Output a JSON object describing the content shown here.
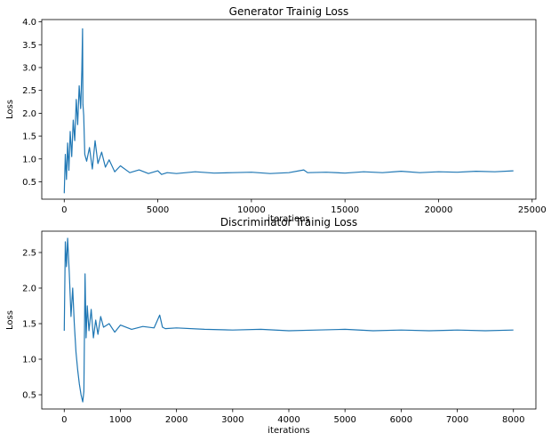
{
  "chart_data": [
    {
      "type": "line",
      "title": "Generator Trainig Loss",
      "xlabel": "iterations",
      "ylabel": "Loss",
      "xlim": [
        -1200,
        25200
      ],
      "ylim": [
        0.12,
        4.05
      ],
      "xticks": [
        0,
        5000,
        10000,
        15000,
        20000,
        25000
      ],
      "yticks": [
        0.5,
        1.0,
        1.5,
        2.0,
        2.5,
        3.0,
        3.5,
        4.0
      ],
      "ytick_labels": [
        "0.5",
        "1.0",
        "1.5",
        "2.0",
        "2.5",
        "3.0",
        "3.5",
        "4.0"
      ],
      "grid": false,
      "color": "#1f77b4",
      "series": [
        {
          "x": [
            0,
            60,
            120,
            180,
            250,
            320,
            400,
            480,
            560,
            640,
            720,
            800,
            880,
            940,
            980,
            1000,
            1040,
            1100,
            1200,
            1350,
            1500,
            1650,
            1800,
            2000,
            2200,
            2400,
            2700,
            3000,
            3500,
            4000,
            4500,
            5000,
            5200,
            5500,
            6000,
            7000,
            8000,
            9000,
            10000,
            11000,
            12000,
            12800,
            13000,
            14000,
            15000,
            16000,
            17000,
            18000,
            19000,
            20000,
            21000,
            22000,
            23000,
            24000
          ],
          "y": [
            0.25,
            1.1,
            0.55,
            1.35,
            0.75,
            1.6,
            1.05,
            1.85,
            1.4,
            2.3,
            1.75,
            2.6,
            2.1,
            2.95,
            3.85,
            2.2,
            1.95,
            1.1,
            0.95,
            1.25,
            0.78,
            1.4,
            0.9,
            1.15,
            0.82,
            0.98,
            0.72,
            0.85,
            0.7,
            0.76,
            0.68,
            0.74,
            0.66,
            0.7,
            0.68,
            0.72,
            0.69,
            0.7,
            0.71,
            0.68,
            0.7,
            0.76,
            0.7,
            0.71,
            0.69,
            0.72,
            0.7,
            0.73,
            0.7,
            0.72,
            0.71,
            0.73,
            0.72,
            0.74
          ]
        }
      ]
    },
    {
      "type": "line",
      "title": "Discriminator Trainig Loss",
      "xlabel": "iterations",
      "ylabel": "Loss",
      "xlim": [
        -400,
        8400
      ],
      "ylim": [
        0.3,
        2.8
      ],
      "xticks": [
        0,
        1000,
        2000,
        3000,
        4000,
        5000,
        6000,
        7000,
        8000
      ],
      "yticks": [
        0.5,
        1.0,
        1.5,
        2.0,
        2.5
      ],
      "ytick_labels": [
        "0.5",
        "1.0",
        "1.5",
        "2.0",
        "2.5"
      ],
      "grid": false,
      "color": "#1f77b4",
      "series": [
        {
          "x": [
            0,
            20,
            40,
            60,
            90,
            120,
            150,
            180,
            210,
            240,
            270,
            300,
            330,
            350,
            370,
            390,
            410,
            440,
            480,
            520,
            560,
            600,
            650,
            700,
            800,
            900,
            1000,
            1200,
            1400,
            1600,
            1700,
            1750,
            1800,
            2000,
            2500,
            3000,
            3500,
            4000,
            4500,
            5000,
            5500,
            6000,
            6500,
            7000,
            7500,
            8000
          ],
          "y": [
            1.4,
            2.65,
            2.3,
            2.7,
            2.2,
            1.6,
            2.0,
            1.5,
            1.1,
            0.85,
            0.65,
            0.5,
            0.4,
            0.55,
            2.2,
            1.3,
            1.75,
            1.4,
            1.7,
            1.3,
            1.55,
            1.35,
            1.6,
            1.45,
            1.5,
            1.38,
            1.48,
            1.42,
            1.46,
            1.44,
            1.62,
            1.45,
            1.43,
            1.44,
            1.42,
            1.41,
            1.42,
            1.4,
            1.41,
            1.42,
            1.4,
            1.41,
            1.4,
            1.41,
            1.4,
            1.41
          ]
        }
      ]
    }
  ]
}
